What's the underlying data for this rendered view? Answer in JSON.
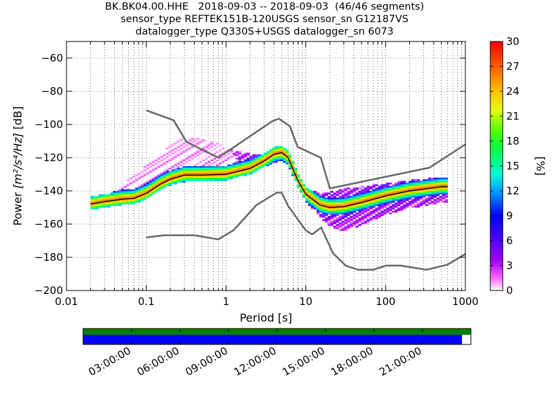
{
  "title": {
    "line1": "BK.BK04.00.HHE   2018-09-03 -- 2018-09-03  (46/46 segments)",
    "line2": "sensor_type REFTEK151B-120USGS sensor_sn G12187VS",
    "line3": "datalogger_type Q330S+USGS datalogger_sn 6073"
  },
  "chart_data": {
    "type": "heatmap",
    "xlabel": "Period [s]",
    "ylabel_prefix": "Power ",
    "ylabel_units": "[m²/s⁴/Hz]",
    "ylabel_suffix": " [dB]",
    "x_scale": "log",
    "xlim": [
      0.01,
      1000
    ],
    "ylim": [
      -200,
      -50
    ],
    "x_tick_labels": [
      "0.01",
      "0.1",
      "1",
      "10",
      "100",
      "1000"
    ],
    "x_ticks": [
      0.01,
      0.1,
      1,
      10,
      100,
      1000
    ],
    "y_ticks": [
      -200,
      -180,
      -160,
      -140,
      -120,
      -100,
      -80,
      -60
    ],
    "y_tick_labels": [
      "−200",
      "−180",
      "−160",
      "−140",
      "−120",
      "−100",
      "−80",
      "−60"
    ],
    "grid": true,
    "colorbar": {
      "label": "[%]",
      "range": [
        0,
        30
      ],
      "ticks": [
        "0",
        "3",
        "6",
        "9",
        "12",
        "15",
        "18",
        "21",
        "24",
        "27",
        "30"
      ],
      "tick_values": [
        0,
        3,
        6,
        9,
        12,
        15,
        18,
        21,
        24,
        27,
        30
      ]
    },
    "nlnm": {
      "period": [
        0.1,
        0.17,
        0.4,
        0.8,
        1.24,
        2.4,
        4.3,
        5,
        6,
        10,
        12,
        15.6,
        21.9,
        31.6,
        45,
        70,
        101,
        154,
        328,
        600,
        1000
      ],
      "db": [
        -168,
        -166.7,
        -166.7,
        -169.2,
        -163.7,
        -148.6,
        -141.1,
        -141.1,
        -149,
        -163.8,
        -166.2,
        -162.1,
        -177.5,
        -185,
        -187.5,
        -187.5,
        -185,
        -185,
        -187.5,
        -184.4,
        -178
      ]
    },
    "nhnm": {
      "period": [
        0.1,
        0.22,
        0.32,
        0.8,
        3.8,
        4.6,
        6.3,
        7.9,
        15.4,
        20,
        354.8,
        1000
      ],
      "db": [
        -91.5,
        -97.4,
        -110.5,
        -120,
        -98,
        -96.5,
        -101,
        -113.5,
        -120,
        -138.5,
        -126,
        -112
      ]
    },
    "mean_curve": {
      "period": [
        0.02,
        0.03,
        0.05,
        0.07,
        0.1,
        0.15,
        0.2,
        0.3,
        0.5,
        1,
        2,
        3,
        4,
        5,
        6,
        8,
        10,
        15,
        20,
        30,
        50,
        100,
        200,
        500,
        600
      ],
      "db": [
        -148,
        -146.5,
        -145,
        -144.5,
        -141.5,
        -136,
        -133,
        -130.5,
        -130.5,
        -130,
        -126.5,
        -122,
        -118,
        -117,
        -120,
        -134,
        -142,
        -148.5,
        -150,
        -149.5,
        -147,
        -143,
        -140,
        -137.5,
        -137.5
      ]
    },
    "percentile_high": {
      "period": [
        0.03,
        0.05,
        0.07,
        0.1,
        0.15,
        0.2,
        0.3,
        0.5,
        0.8,
        1.2,
        2,
        3,
        4,
        5,
        6,
        8,
        10,
        15,
        20,
        30,
        50,
        100,
        200,
        600
      ],
      "db": [
        -145,
        -138,
        -132,
        -126,
        -120,
        -113,
        -109,
        -110,
        -113,
        -117,
        -119,
        -120,
        -119,
        -118,
        -121,
        -133,
        -140,
        -143,
        -142,
        -140,
        -139,
        -137,
        -135,
        -133
      ]
    },
    "percentile_low": {
      "period": [
        0.05,
        0.07,
        0.1,
        0.15,
        0.2,
        0.3,
        0.5,
        1,
        2,
        3,
        5,
        6,
        8,
        10,
        15,
        20,
        30,
        50,
        100,
        200,
        600
      ],
      "db": [
        -147,
        -146.5,
        -144,
        -139,
        -136,
        -134,
        -133,
        -132,
        -129,
        -125,
        -121,
        -124,
        -137,
        -146,
        -155,
        -161,
        -164,
        -160,
        -154,
        -150,
        -146
      ]
    },
    "time_axis": {
      "labels": [
        "03:00:00",
        "06:00:00",
        "09:00:00",
        "12:00:00",
        "15:00:00",
        "18:00:00",
        "21:00:00"
      ],
      "hours": [
        3,
        6,
        9,
        12,
        15,
        18,
        21
      ],
      "range_hours": [
        0,
        24
      ],
      "data_coverage_end_hour": 24,
      "psd_coverage_end_hour": 23.45,
      "data_color": "#007f00",
      "psd_color": "#0000ff"
    },
    "colors": {
      "noise_model": "#666666",
      "mean": "#000000",
      "grid": "#000000"
    }
  }
}
